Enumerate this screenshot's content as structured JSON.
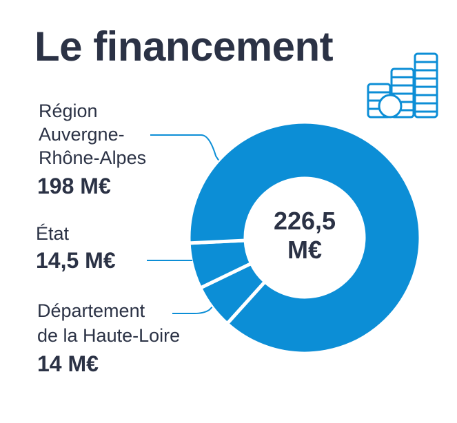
{
  "title": "Le financement",
  "total": {
    "value": "226,5",
    "unit": "M€"
  },
  "icon": "coin-stacks-icon",
  "colors": {
    "accent": "#0c8ed6",
    "text": "#2b3245",
    "background": "#ffffff"
  },
  "chart_data": {
    "type": "pie",
    "title": "Le financement",
    "total": 226.5,
    "unit": "M€",
    "slices": [
      {
        "label": "Région Auvergne-Rhône-Alpes",
        "value": 198
      },
      {
        "label": "État",
        "value": 14.5
      },
      {
        "label": "Département de la Haute-Loire",
        "value": 14
      }
    ]
  },
  "labels": [
    {
      "lines": [
        "Région",
        "Auvergne-",
        "Rhône-Alpes"
      ],
      "value": "198 M€"
    },
    {
      "lines": [
        "État"
      ],
      "value": "14,5 M€"
    },
    {
      "lines": [
        "Département",
        "de la Haute-Loire"
      ],
      "value": "14 M€"
    }
  ]
}
